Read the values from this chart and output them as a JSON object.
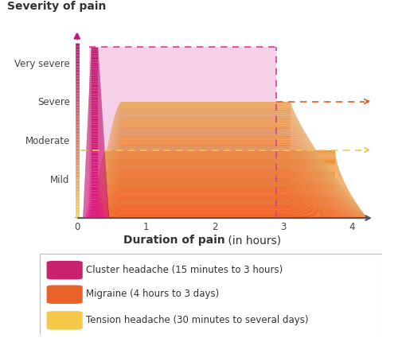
{
  "title_severity": "Severity of pain",
  "xlabel_bold": "Duration of pain",
  "xlabel_normal": " (in hours)",
  "ytick_labels": [
    "Mild",
    "Moderate",
    "Severe",
    "Very severe"
  ],
  "ytick_values": [
    1,
    2,
    3,
    4
  ],
  "xtick_labels": [
    "0",
    "1",
    "2",
    "3",
    "4"
  ],
  "xtick_values": [
    0,
    1,
    2,
    3,
    4
  ],
  "xlim": [
    -0.05,
    4.35
  ],
  "ylim": [
    0,
    5.0
  ],
  "cluster_spike_color_top": "#c0187a",
  "cluster_spike_color_bottom": "#e8609a",
  "cluster_rect_color": "#f5d0e8",
  "cluster_dashed_color": "#d44090",
  "migraine_color_dark": "#e05a28",
  "migraine_color_light": "#f5b07a",
  "tension_color_dark": "#f0a830",
  "tension_color_light": "#fde8a0",
  "migraine_dashed_color": "#e06020",
  "tension_dashed_color": "#e8c858",
  "yaxis_color_top": "#c0187a",
  "yaxis_color_bottom": "#f5d060",
  "legend_items": [
    {
      "label": "Cluster headache (15 minutes to 3 hours)",
      "color": "#c92070"
    },
    {
      "label": "Migraine (4 hours to 3 days)",
      "color": "#e8622a"
    },
    {
      "label": "Tension headache (30 minutes to several days)",
      "color": "#f5c84a"
    }
  ],
  "background_color": "#ffffff"
}
